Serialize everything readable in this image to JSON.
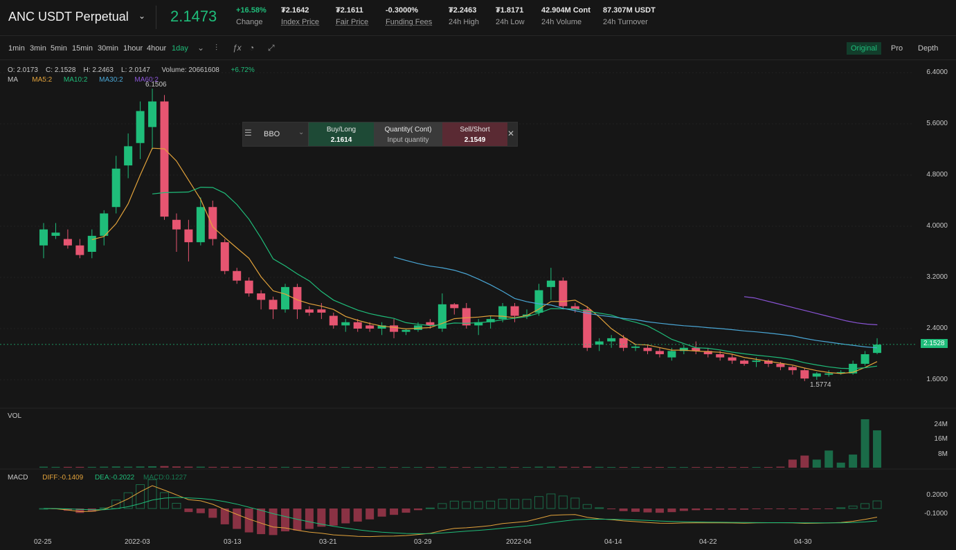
{
  "header": {
    "symbol": "ANC USDT Perpetual",
    "last_price": "2.1473",
    "change_pct": "+16.58%",
    "change_label": "Change",
    "stats": [
      {
        "value": "₮2.1642",
        "label": "Index Price",
        "underline": true
      },
      {
        "value": "₮2.1611",
        "label": "Fair Price",
        "underline": true
      },
      {
        "value": "-0.3000%",
        "label": "Funding Fees",
        "underline": true
      },
      {
        "value": "₮2.2463",
        "label": "24h High",
        "underline": false
      },
      {
        "value": "₮1.8171",
        "label": "24h Low",
        "underline": false
      },
      {
        "value": "42.904M Cont",
        "label": "24h Volume",
        "underline": false
      },
      {
        "value": "87.307M USDT",
        "label": "24h Turnover",
        "underline": false
      }
    ]
  },
  "toolbar": {
    "timeframes": [
      "1min",
      "3min",
      "5min",
      "15min",
      "30min",
      "1hour",
      "4hour",
      "1day"
    ],
    "active_timeframe": "1day",
    "views": [
      "Original",
      "Pro",
      "Depth"
    ],
    "active_view": "Original",
    "icons": [
      "candle-type-icon",
      "indicator-fx-icon",
      "settings-dial-icon",
      "fullscreen-icon"
    ]
  },
  "ohlc": {
    "o": "O: 2.0173",
    "c": "C: 2.1528",
    "h": "H: 2.2463",
    "l": "L: 2.0147",
    "volume": "Volume: 20661608",
    "change": "+6.72%"
  },
  "ma_legend": {
    "label": "MA",
    "ma5": "MA5:2",
    "ma10": "MA10:2",
    "ma30": "MA30:2",
    "ma60": "MA60:2"
  },
  "bbo": {
    "select": "BBO",
    "buy_label": "Buy/Long",
    "buy_price": "2.1614",
    "qty_label": "Quantity( Cont)",
    "qty_placeholder": "Input quantity",
    "sell_label": "Sell/Short",
    "sell_price": "2.1549"
  },
  "price_axis": [
    "6.4000",
    "5.6000",
    "4.8000",
    "4.0000",
    "3.2000",
    "2.4000",
    "1.6000"
  ],
  "last_tag": "2.1528",
  "high_marker": "6.1506",
  "low_marker": "1.5774",
  "vol_panel": {
    "label": "VOL",
    "axis": [
      "24M",
      "16M",
      "8M"
    ]
  },
  "macd_panel": {
    "label": "MACD",
    "diff": "DIFF:-0.1409",
    "dea": "DEA:-0.2022",
    "macd": "MACD:0.1227",
    "axis": [
      "0.2000",
      "-0.1000"
    ]
  },
  "x_axis": [
    "02-25",
    "2022-03",
    "03-13",
    "03-21",
    "03-29",
    "2022-04",
    "04-14",
    "04-22",
    "04-30"
  ],
  "colors": {
    "up": "#1fbd7a",
    "down": "#e65571",
    "ma5": "#e3a33b",
    "ma10": "#1fbd7a",
    "ma30": "#4aa7d6",
    "ma60": "#8a54d6"
  },
  "chart_data": {
    "type": "candlestick",
    "ylim": [
      1.6,
      6.4
    ],
    "candles": [
      [
        3.7,
        3.95,
        3.5,
        4.05
      ],
      [
        3.85,
        3.9,
        3.8,
        4.05
      ],
      [
        3.8,
        3.7,
        3.65,
        3.95
      ],
      [
        3.7,
        3.55,
        3.5,
        3.8
      ],
      [
        3.6,
        3.85,
        3.5,
        3.95
      ],
      [
        3.85,
        4.2,
        3.7,
        4.25
      ],
      [
        4.3,
        4.9,
        4.2,
        5.1
      ],
      [
        4.95,
        5.25,
        4.75,
        5.45
      ],
      [
        5.3,
        5.8,
        5.05,
        5.95
      ],
      [
        5.55,
        5.95,
        5.2,
        6.15
      ],
      [
        5.95,
        4.15,
        4.1,
        6.05
      ],
      [
        4.1,
        3.95,
        3.6,
        4.2
      ],
      [
        3.95,
        3.75,
        3.45,
        4.1
      ],
      [
        3.75,
        4.3,
        3.7,
        4.45
      ],
      [
        4.3,
        3.8,
        3.7,
        4.4
      ],
      [
        3.75,
        3.3,
        3.25,
        3.8
      ],
      [
        3.3,
        3.15,
        3.1,
        3.35
      ],
      [
        3.15,
        2.95,
        2.9,
        3.2
      ],
      [
        2.95,
        2.85,
        2.7,
        3.0
      ],
      [
        2.85,
        2.7,
        2.55,
        2.9
      ],
      [
        2.7,
        3.05,
        2.65,
        3.1
      ],
      [
        3.05,
        2.7,
        2.55,
        3.1
      ],
      [
        2.7,
        2.65,
        2.6,
        2.75
      ],
      [
        2.7,
        2.65,
        2.55,
        2.8
      ],
      [
        2.6,
        2.45,
        2.4,
        2.65
      ],
      [
        2.45,
        2.5,
        2.35,
        2.55
      ],
      [
        2.5,
        2.4,
        2.35,
        2.55
      ],
      [
        2.45,
        2.4,
        2.35,
        2.5
      ],
      [
        2.4,
        2.45,
        2.3,
        2.5
      ],
      [
        2.45,
        2.35,
        2.25,
        2.55
      ],
      [
        2.35,
        2.38,
        2.3,
        2.4
      ],
      [
        2.38,
        2.45,
        2.35,
        2.5
      ],
      [
        2.5,
        2.45,
        2.4,
        2.55
      ],
      [
        2.4,
        2.78,
        2.35,
        2.95
      ],
      [
        2.78,
        2.72,
        2.62,
        2.8
      ],
      [
        2.72,
        2.45,
        2.4,
        2.8
      ],
      [
        2.45,
        2.5,
        2.3,
        2.55
      ],
      [
        2.5,
        2.55,
        2.4,
        2.6
      ],
      [
        2.55,
        2.75,
        2.5,
        2.8
      ],
      [
        2.75,
        2.6,
        2.5,
        2.8
      ],
      [
        2.6,
        2.62,
        2.55,
        2.7
      ],
      [
        2.65,
        3.0,
        2.6,
        3.1
      ],
      [
        3.05,
        3.15,
        2.85,
        3.35
      ],
      [
        3.15,
        2.75,
        2.7,
        3.2
      ],
      [
        2.75,
        2.7,
        2.65,
        2.8
      ],
      [
        2.7,
        2.1,
        2.05,
        2.75
      ],
      [
        2.15,
        2.2,
        2.05,
        2.25
      ],
      [
        2.2,
        2.25,
        2.1,
        2.3
      ],
      [
        2.25,
        2.1,
        2.05,
        2.3
      ],
      [
        2.1,
        2.12,
        2.05,
        2.15
      ],
      [
        2.1,
        2.05,
        2.0,
        2.15
      ],
      [
        2.05,
        2.0,
        1.95,
        2.1
      ],
      [
        1.95,
        2.05,
        1.9,
        2.1
      ],
      [
        2.05,
        2.1,
        2.0,
        2.15
      ],
      [
        2.1,
        2.05,
        2.0,
        2.2
      ],
      [
        2.05,
        2.0,
        1.95,
        2.1
      ],
      [
        2.0,
        1.95,
        1.9,
        2.05
      ],
      [
        1.95,
        1.9,
        1.85,
        2.0
      ],
      [
        1.9,
        1.85,
        1.82,
        1.92
      ],
      [
        1.88,
        1.9,
        1.8,
        1.95
      ],
      [
        1.9,
        1.85,
        1.8,
        1.92
      ],
      [
        1.85,
        1.8,
        1.75,
        1.88
      ],
      [
        1.8,
        1.75,
        1.68,
        1.82
      ],
      [
        1.75,
        1.62,
        1.58,
        1.78
      ],
      [
        1.65,
        1.7,
        1.6,
        1.72
      ],
      [
        1.68,
        1.7,
        1.65,
        1.75
      ],
      [
        1.7,
        1.72,
        1.68,
        1.75
      ],
      [
        1.7,
        1.85,
        1.68,
        1.9
      ],
      [
        1.85,
        2.0,
        1.82,
        2.05
      ],
      [
        2.02,
        2.15,
        2.0,
        2.25
      ]
    ],
    "volume": [
      0.5,
      0.4,
      0.4,
      0.4,
      0.4,
      0.5,
      0.6,
      0.5,
      0.6,
      0.7,
      0.8,
      0.6,
      0.5,
      0.5,
      0.4,
      0.4,
      0.4,
      0.3,
      0.3,
      0.3,
      0.4,
      0.3,
      0.3,
      0.3,
      0.3,
      0.3,
      0.3,
      0.3,
      0.3,
      0.3,
      0.3,
      0.3,
      0.3,
      0.4,
      0.3,
      0.3,
      0.3,
      0.3,
      0.4,
      0.3,
      0.3,
      0.5,
      0.5,
      0.5,
      0.4,
      0.6,
      0.4,
      0.3,
      0.3,
      0.3,
      0.3,
      0.3,
      0.3,
      0.3,
      0.3,
      0.3,
      0.3,
      0.3,
      0.3,
      0.3,
      0.3,
      0.5,
      4.0,
      6.0,
      4.0,
      8.5,
      2.5,
      6.5,
      24.0,
      18.5
    ],
    "ma60_values": [
      2.9,
      2.88,
      2.84,
      2.8,
      2.76,
      2.72,
      2.68,
      2.64,
      2.6,
      2.56,
      2.52,
      2.49,
      2.47,
      2.46
    ]
  }
}
